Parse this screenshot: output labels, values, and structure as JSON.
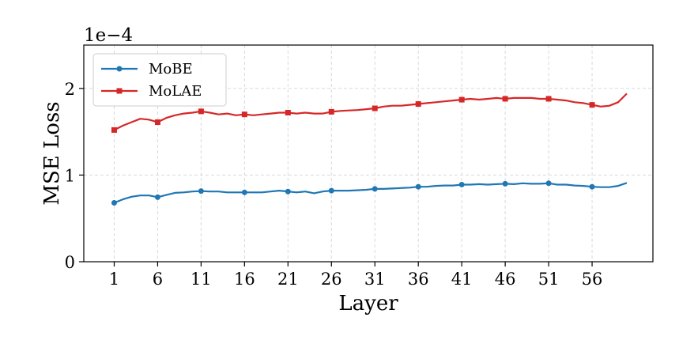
{
  "chart_data": {
    "type": "line",
    "xlabel": "Layer",
    "ylabel": "MSE Loss",
    "y_offset_label": "1e−4",
    "xlim": [
      -2.5,
      63
    ],
    "ylim": [
      0,
      2.5
    ],
    "x_ticks": [
      1,
      6,
      11,
      16,
      21,
      26,
      31,
      36,
      41,
      46,
      51,
      56
    ],
    "y_ticks": [
      0,
      1,
      2
    ],
    "grid": true,
    "legend_position": "top-left",
    "x": [
      1,
      2,
      3,
      4,
      5,
      6,
      7,
      8,
      9,
      10,
      11,
      12,
      13,
      14,
      15,
      16,
      17,
      18,
      19,
      20,
      21,
      22,
      23,
      24,
      25,
      26,
      27,
      28,
      29,
      30,
      31,
      32,
      33,
      34,
      35,
      36,
      37,
      38,
      39,
      40,
      41,
      42,
      43,
      44,
      45,
      46,
      47,
      48,
      49,
      50,
      51,
      52,
      53,
      54,
      55,
      56,
      57,
      58,
      59,
      60
    ],
    "marker_every": 5,
    "series": [
      {
        "name": "MoBE",
        "color": "#1f77b4",
        "marker": "circle",
        "values": [
          0.68,
          0.72,
          0.75,
          0.765,
          0.765,
          0.745,
          0.77,
          0.795,
          0.8,
          0.81,
          0.815,
          0.81,
          0.81,
          0.8,
          0.8,
          0.8,
          0.8,
          0.8,
          0.81,
          0.82,
          0.81,
          0.8,
          0.81,
          0.79,
          0.81,
          0.82,
          0.82,
          0.82,
          0.825,
          0.83,
          0.84,
          0.84,
          0.845,
          0.85,
          0.855,
          0.865,
          0.865,
          0.875,
          0.88,
          0.88,
          0.89,
          0.89,
          0.895,
          0.89,
          0.895,
          0.9,
          0.895,
          0.905,
          0.9,
          0.9,
          0.905,
          0.89,
          0.89,
          0.88,
          0.875,
          0.865,
          0.86,
          0.86,
          0.875,
          0.91
        ]
      },
      {
        "name": "MoLAE",
        "color": "#d62728",
        "marker": "square",
        "values": [
          1.52,
          1.57,
          1.61,
          1.65,
          1.64,
          1.61,
          1.66,
          1.69,
          1.71,
          1.72,
          1.735,
          1.72,
          1.7,
          1.71,
          1.69,
          1.7,
          1.69,
          1.7,
          1.71,
          1.72,
          1.72,
          1.71,
          1.72,
          1.71,
          1.71,
          1.73,
          1.74,
          1.745,
          1.75,
          1.76,
          1.77,
          1.79,
          1.8,
          1.8,
          1.81,
          1.82,
          1.83,
          1.84,
          1.85,
          1.86,
          1.87,
          1.88,
          1.87,
          1.88,
          1.89,
          1.88,
          1.89,
          1.89,
          1.89,
          1.88,
          1.88,
          1.87,
          1.86,
          1.84,
          1.83,
          1.81,
          1.79,
          1.8,
          1.84,
          1.94
        ]
      }
    ]
  }
}
